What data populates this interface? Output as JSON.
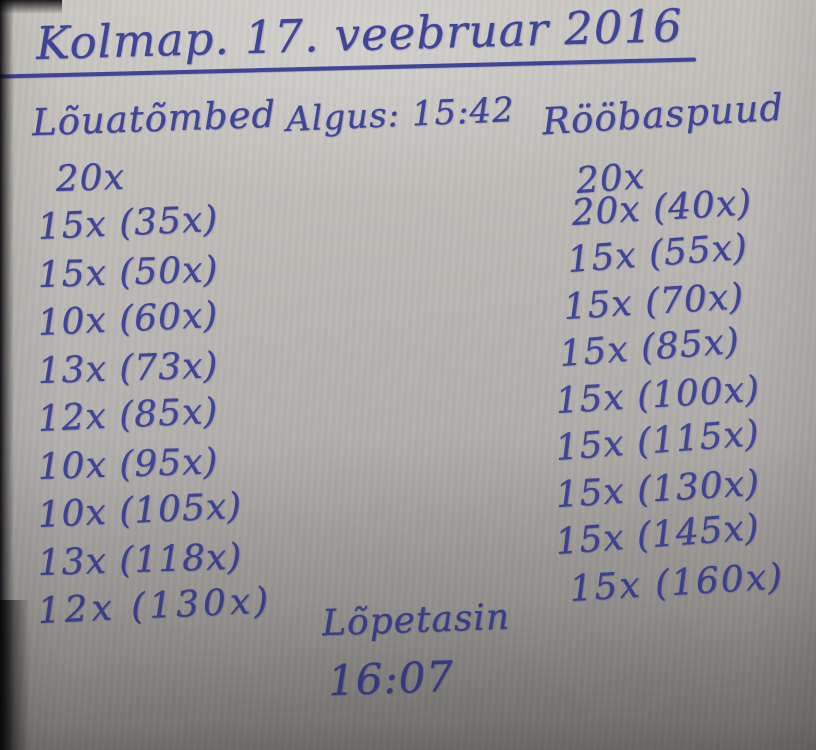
{
  "colors": {
    "ink": "#41459a",
    "paper-light": "#cbc8c3",
    "paper-mid": "#b3b0ad",
    "paper-dark": "#8f8c89"
  },
  "note": {
    "title": "Kolmap. 17. veebruar 2016",
    "start_label": "Algus: 15:42",
    "finish_label": "Lõpetasin",
    "finish_time": "16:07",
    "left_column": {
      "header": "Lõuatõmbed",
      "entries": [
        "20x",
        "15x (35x)",
        "15x (50x)",
        "10x (60x)",
        "13x (73x)",
        "12x (85x)",
        "10x (95x)",
        "10x (105x)",
        "13x (118x)",
        "12x (130x)"
      ]
    },
    "right_column": {
      "header": "Rööbaspuud",
      "entries": [
        "20x",
        "20x (40x)",
        "15x (55x)",
        "15x (70x)",
        "15x (85x)",
        "15x (100x)",
        "15x (115x)",
        "15x (130x)",
        "15x (145x)",
        "15x (160x)"
      ]
    }
  }
}
